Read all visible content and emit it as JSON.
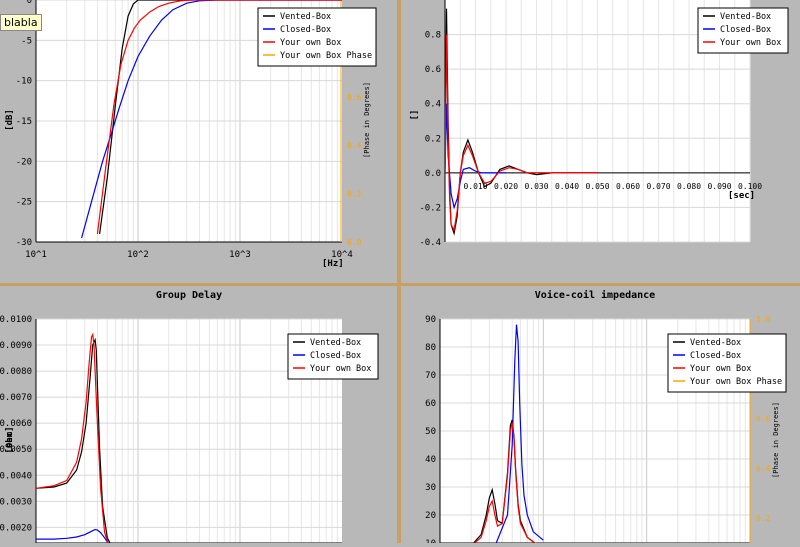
{
  "tooltip": "blabla",
  "colors": {
    "vented": "#000000",
    "closed": "#0000ff",
    "own": "#ff0000",
    "phase": "#ffa500"
  },
  "chart_data": [
    {
      "id": "frequency-response",
      "type": "line",
      "title": "",
      "xlabel": "[Hz]",
      "ylabel": "[dB]",
      "y2label": "[Phase in Degrees]",
      "xscale": "log",
      "xlim": [
        10,
        10000
      ],
      "ylim": [
        -30,
        0
      ],
      "y2lim": [
        0.0,
        1.0
      ],
      "xticks": [
        "10^1",
        "10^2",
        "10^3",
        "10^4"
      ],
      "yticks": [
        "0",
        "-5",
        "-10",
        "-15",
        "-20",
        "-25",
        "-30"
      ],
      "y2ticks": [
        "0.0",
        "0.2",
        "0.4",
        "0.6"
      ],
      "legend": [
        "Vented-Box",
        "Closed-Box",
        "Your own Box",
        "Your own Box Phase"
      ],
      "legend_position": "top-right",
      "grid": true,
      "series": [
        {
          "name": "Vented-Box",
          "color": "#000000",
          "x": [
            42,
            50,
            60,
            70,
            80,
            90,
            100,
            120,
            150,
            200,
            300,
            500,
            1000,
            5000,
            10000
          ],
          "y": [
            -29,
            -22,
            -13,
            -6,
            -2,
            -0.5,
            0,
            0,
            0,
            0,
            0,
            0,
            0,
            0,
            0
          ]
        },
        {
          "name": "Closed-Box",
          "color": "#0000ff",
          "x": [
            28,
            35,
            45,
            55,
            65,
            80,
            100,
            130,
            170,
            220,
            300,
            400,
            600,
            1000,
            10000
          ],
          "y": [
            -29.5,
            -25,
            -20,
            -16.5,
            -13.5,
            -10,
            -7,
            -4.5,
            -2.5,
            -1.2,
            -0.4,
            -0.1,
            0,
            0,
            0
          ]
        },
        {
          "name": "Your own Box",
          "color": "#ff0000",
          "x": [
            40,
            48,
            58,
            68,
            80,
            92,
            105,
            130,
            160,
            200,
            260,
            350,
            500,
            1000,
            10000
          ],
          "y": [
            -29,
            -21,
            -13,
            -8,
            -5,
            -3.5,
            -2.5,
            -1.5,
            -0.8,
            -0.4,
            -0.1,
            0,
            0,
            0,
            0
          ]
        }
      ]
    },
    {
      "id": "impulse-response",
      "type": "line",
      "title": "",
      "xlabel": "[sec]",
      "ylabel": "[]",
      "xlim": [
        0,
        0.1
      ],
      "ylim": [
        -0.4,
        1.0
      ],
      "xticks": [
        "0.010",
        "0.020",
        "0.030",
        "0.040",
        "0.050",
        "0.060",
        "0.070",
        "0.080",
        "0.090",
        "0.100"
      ],
      "yticks": [
        "0.8",
        "0.6",
        "0.4",
        "0.2",
        "0.0",
        "-0.2",
        "-0.4"
      ],
      "legend": [
        "Vented-Box",
        "Closed-Box",
        "Your own Box"
      ],
      "legend_position": "top-right",
      "grid": true,
      "series": [
        {
          "name": "Vented-Box",
          "color": "#000000",
          "x": [
            0,
            0.0005,
            0.001,
            0.0015,
            0.002,
            0.003,
            0.004,
            0.005,
            0.006,
            0.0075,
            0.009,
            0.011,
            0.013,
            0.015,
            0.018,
            0.021,
            0.024,
            0.027,
            0.03,
            0.035,
            0.04,
            0.05
          ],
          "y": [
            0,
            0.95,
            0.3,
            -0.1,
            -0.3,
            -0.35,
            -0.25,
            0.0,
            0.12,
            0.19,
            0.12,
            0.0,
            -0.08,
            -0.06,
            0.02,
            0.04,
            0.02,
            0.0,
            -0.01,
            0,
            0,
            0
          ]
        },
        {
          "name": "Closed-Box",
          "color": "#0000ff",
          "x": [
            0,
            0.0005,
            0.001,
            0.002,
            0.003,
            0.004,
            0.005,
            0.006,
            0.008,
            0.01,
            0.012,
            0.015,
            0.02
          ],
          "y": [
            0,
            0.4,
            0.1,
            -0.12,
            -0.2,
            -0.15,
            -0.05,
            0.02,
            0.03,
            0.01,
            0,
            0,
            0
          ]
        },
        {
          "name": "Your own Box",
          "color": "#ff0000",
          "x": [
            0,
            0.0005,
            0.001,
            0.0015,
            0.002,
            0.003,
            0.004,
            0.005,
            0.006,
            0.0075,
            0.009,
            0.011,
            0.013,
            0.015,
            0.018,
            0.021,
            0.024,
            0.027,
            0.03,
            0.04,
            0.05
          ],
          "y": [
            0,
            0.8,
            0.2,
            -0.15,
            -0.3,
            -0.33,
            -0.22,
            0.0,
            0.1,
            0.16,
            0.1,
            0.0,
            -0.06,
            -0.05,
            0.01,
            0.03,
            0.02,
            0.0,
            0,
            0,
            0
          ]
        }
      ]
    },
    {
      "id": "group-delay",
      "type": "line",
      "title": "Group Delay",
      "xlabel": "",
      "ylabel": "[sec]",
      "xscale": "log",
      "xlim": [
        10,
        10000
      ],
      "ylim": [
        0.0014,
        0.01
      ],
      "yticks": [
        "0.0100",
        "0.0090",
        "0.0080",
        "0.0070",
        "0.0060",
        "0.0050",
        "0.0040",
        "0.0030",
        "0.0020"
      ],
      "legend": [
        "Vented-Box",
        "Closed-Box",
        "Your own Box"
      ],
      "legend_position": "top-right",
      "grid": true,
      "series": [
        {
          "name": "Vented-Box",
          "color": "#000000",
          "x": [
            10,
            15,
            20,
            25,
            28,
            31,
            34,
            36,
            38,
            39,
            40,
            42,
            45,
            50,
            60
          ],
          "y": [
            0.0035,
            0.00355,
            0.0037,
            0.0042,
            0.0049,
            0.006,
            0.0078,
            0.009,
            0.0092,
            0.0088,
            0.0075,
            0.005,
            0.0028,
            0.0016,
            0.001
          ]
        },
        {
          "name": "Closed-Box",
          "color": "#0000ff",
          "x": [
            10,
            15,
            20,
            25,
            30,
            35,
            38,
            40,
            43,
            47,
            55
          ],
          "y": [
            0.00155,
            0.00155,
            0.00158,
            0.00163,
            0.00172,
            0.00185,
            0.00192,
            0.0019,
            0.0018,
            0.0016,
            0.0012
          ]
        },
        {
          "name": "Your own Box",
          "color": "#ff0000",
          "x": [
            10,
            15,
            20,
            25,
            28,
            31,
            33,
            35,
            36,
            37,
            38,
            40,
            43,
            47,
            55
          ],
          "y": [
            0.0035,
            0.0036,
            0.0038,
            0.0045,
            0.0054,
            0.0068,
            0.0082,
            0.0093,
            0.0094,
            0.009,
            0.008,
            0.006,
            0.0035,
            0.0018,
            0.001
          ]
        }
      ]
    },
    {
      "id": "voice-coil-impedance",
      "type": "line",
      "title": "Voice-coil impedance",
      "xlabel": "",
      "ylabel": "[Ohm]",
      "y2label": "[Phase in Degrees]",
      "xscale": "log",
      "xlim": [
        10,
        10000
      ],
      "ylim": [
        10,
        90
      ],
      "y2lim": [
        0.1,
        1.0
      ],
      "yticks": [
        "90",
        "80",
        "70",
        "60",
        "50",
        "40",
        "30",
        "20",
        "10"
      ],
      "y2ticks": [
        "1.0",
        "0.8",
        "0.6",
        "0.4",
        "0.2"
      ],
      "legend": [
        "Vented-Box",
        "Closed-Box",
        "Your own Box",
        "Your own Box Phase"
      ],
      "legend_position": "top-right",
      "grid": true,
      "series": [
        {
          "name": "Vented-Box",
          "color": "#000000",
          "x": [
            10,
            20,
            25,
            28,
            30,
            32,
            34,
            36,
            40,
            45,
            48,
            50,
            52,
            54,
            57,
            60,
            70,
            90
          ],
          "y": [
            7,
            9,
            13,
            20,
            26,
            29,
            24,
            18,
            17,
            35,
            52,
            54,
            48,
            36,
            24,
            18,
            12,
            9
          ]
        },
        {
          "name": "Closed-Box",
          "color": "#0000ff",
          "x": [
            10,
            25,
            35,
            45,
            50,
            53,
            55,
            57,
            59,
            62,
            65,
            70,
            80,
            100
          ],
          "y": [
            7,
            8,
            10,
            20,
            45,
            75,
            88,
            82,
            60,
            38,
            27,
            20,
            14,
            11
          ]
        },
        {
          "name": "Your own Box",
          "color": "#ff0000",
          "x": [
            10,
            20,
            25,
            28,
            30,
            32,
            34,
            36,
            40,
            45,
            48,
            50,
            52,
            54,
            57,
            60,
            70,
            90
          ],
          "y": [
            7,
            9,
            12,
            18,
            23,
            25,
            20,
            16,
            17,
            34,
            50,
            53,
            47,
            35,
            23,
            17,
            12,
            9
          ]
        }
      ]
    }
  ]
}
